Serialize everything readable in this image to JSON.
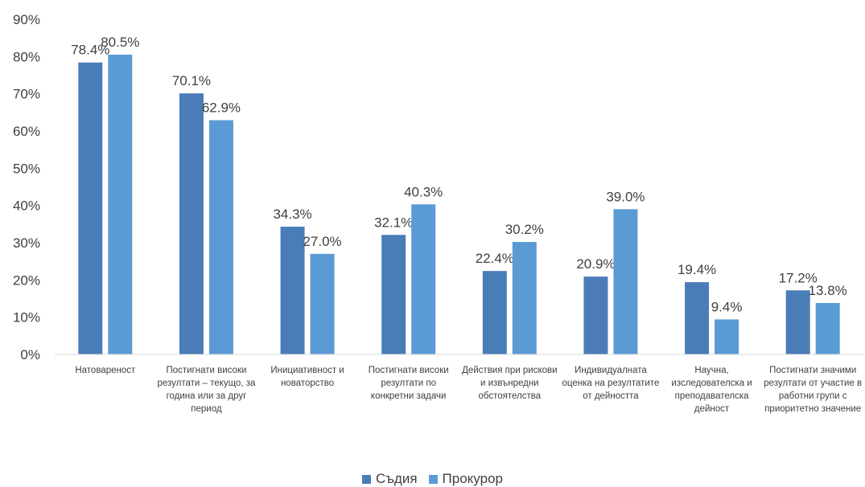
{
  "chart_data": {
    "type": "bar",
    "categories": [
      "Натовареност",
      "Постигнати високи резултати – текущо, за година или за друг период",
      "Инициативност и новаторство",
      "Постигнати високи резултати по конкретни задачи",
      "Действия при рискови и извънредни обстоятелства",
      "Индивидуалната оценка на резултатите от дейността",
      "Научна, изследователска и преподавателска дейност",
      "Постигнати значими резултати от участие в работни групи с приоритетно значение"
    ],
    "series": [
      {
        "name": "Съдия",
        "color": "#4a7db8",
        "values": [
          78.4,
          70.1,
          34.3,
          32.1,
          22.4,
          20.9,
          19.4,
          17.2
        ],
        "labels": [
          "78.4%",
          "70.1%",
          "34.3%",
          "32.1%",
          "22.4%",
          "20.9%",
          "19.4%",
          "17.2%"
        ]
      },
      {
        "name": "Прокурор",
        "color": "#5b9bd5",
        "values": [
          80.5,
          62.9,
          27.0,
          40.3,
          30.2,
          39.0,
          9.4,
          13.8
        ],
        "labels": [
          "80.5%",
          "62.9%",
          "27.0%",
          "40.3%",
          "30.2%",
          "39.0%",
          "9.4%",
          "13.8%"
        ]
      }
    ],
    "yticks": [
      "0%",
      "10%",
      "20%",
      "30%",
      "40%",
      "50%",
      "60%",
      "70%",
      "80%",
      "90%"
    ],
    "ylim": [
      0,
      90
    ],
    "grid": false,
    "legend": "bottom"
  }
}
